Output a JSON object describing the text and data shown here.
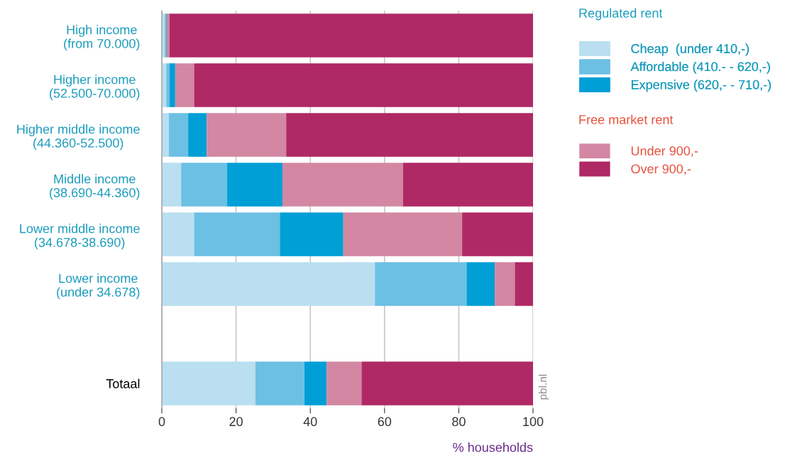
{
  "chart_data": {
    "type": "bar",
    "orientation": "horizontal",
    "stacked": true,
    "categories": [
      "High income\n(from 70.000)",
      "Higher income\n(52.500-70.000)",
      "Higher middle income\n(44.360-52.500)",
      "Middle income\n(38.690-44.360)",
      "Lower middle income\n(34.678-38.690)",
      "Lower income\n(under 34.678)",
      null,
      "Totaal"
    ],
    "series": [
      {
        "name": "Cheap  (under 410,-)",
        "color": "#b9dff0",
        "values": [
          0.8,
          1.2,
          1.9,
          5.2,
          8.7,
          57.4,
          null,
          25.2
        ]
      },
      {
        "name": "Affordable (410.- - 620,-)",
        "color": "#6cc0e3",
        "values": [
          0.3,
          0.9,
          5.2,
          12.4,
          23.1,
          24.7,
          null,
          13.2
        ]
      },
      {
        "name": "Expensive (620,- - 710,-)",
        "color": "#009fd6",
        "values": [
          0.2,
          1.5,
          5.0,
          14.9,
          17.1,
          7.6,
          null,
          6.0
        ]
      },
      {
        "name": "Under 900,-",
        "color": "#d387a2",
        "values": [
          0.8,
          5.1,
          21.4,
          32.5,
          32.0,
          5.4,
          null,
          9.4
        ]
      },
      {
        "name": "Over 900,-",
        "color": "#af2964",
        "values": [
          97.9,
          91.3,
          66.5,
          35.0,
          19.1,
          4.9,
          null,
          46.2
        ]
      }
    ],
    "xlim": [
      0,
      100
    ],
    "xticks": [
      0,
      20,
      40,
      60,
      80,
      100
    ],
    "xlabel": "% households",
    "annotations": [
      "Regulated rent",
      "Free market rent",
      "pbl.nl"
    ],
    "grid": "x",
    "legend": "right"
  }
}
